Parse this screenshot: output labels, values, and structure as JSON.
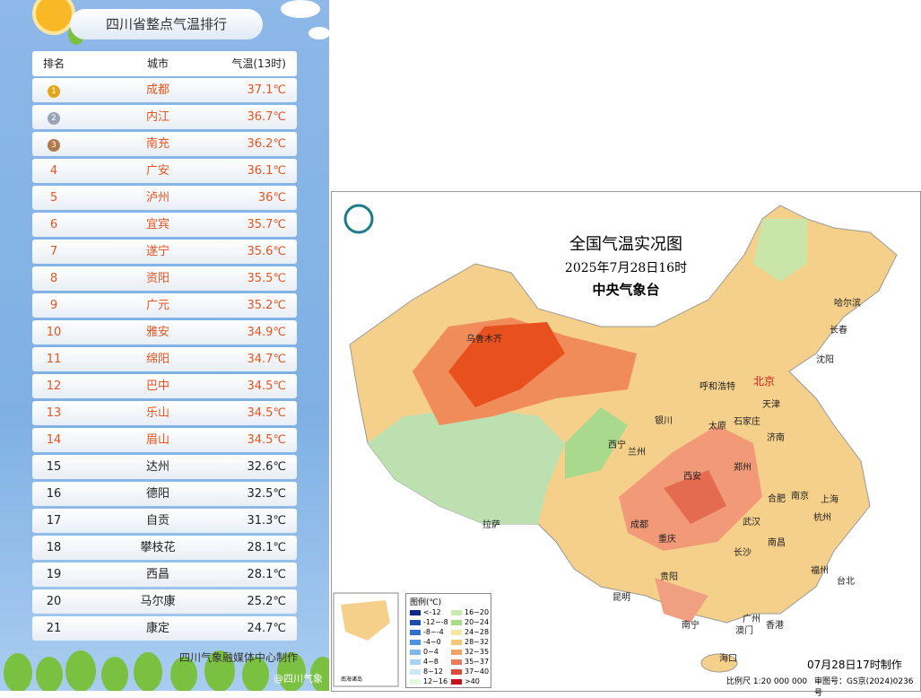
{
  "ranking": {
    "title": "四川省整点气温排行",
    "headers": [
      "排名",
      "城市",
      "气温(13时)"
    ],
    "rows": [
      [
        "1",
        "成都",
        "37.1℃"
      ],
      [
        "2",
        "内江",
        "36.7℃"
      ],
      [
        "3",
        "南充",
        "36.2℃"
      ],
      [
        "4",
        "广安",
        "36.1℃"
      ],
      [
        "5",
        "泸州",
        "36℃"
      ],
      [
        "6",
        "宜宾",
        "35.7℃"
      ],
      [
        "7",
        "遂宁",
        "35.6℃"
      ],
      [
        "8",
        "资阳",
        "35.5℃"
      ],
      [
        "9",
        "广元",
        "35.2℃"
      ],
      [
        "10",
        "雅安",
        "34.9℃"
      ],
      [
        "11",
        "绵阳",
        "34.7℃"
      ],
      [
        "12",
        "巴中",
        "34.5℃"
      ],
      [
        "13",
        "乐山",
        "34.5℃"
      ],
      [
        "14",
        "眉山",
        "34.5℃"
      ],
      [
        "15",
        "达州",
        "32.6℃"
      ],
      [
        "16",
        "德阳",
        "32.5℃"
      ],
      [
        "17",
        "自贡",
        "31.3℃"
      ],
      [
        "18",
        "攀枝花",
        "28.1℃"
      ],
      [
        "19",
        "西昌",
        "28.1℃"
      ],
      [
        "20",
        "马尔康",
        "25.2℃"
      ],
      [
        "21",
        "康定",
        "24.7℃"
      ]
    ],
    "footer": "四川气象融媒体中心制作",
    "watermark": "@四川气象"
  },
  "map": {
    "title": "全国气温实况图",
    "date": "2025年7月28日16时",
    "agency": "中央气象台",
    "cities": [
      "乌鲁木齐",
      "哈尔滨",
      "长春",
      "沈阳",
      "北京",
      "天津",
      "呼和浩特",
      "石家庄",
      "太原",
      "济南",
      "银川",
      "西宁",
      "兰州",
      "郑州",
      "西安",
      "合肥",
      "南京",
      "上海",
      "杭州",
      "成都",
      "重庆",
      "武汉",
      "拉萨",
      "长沙",
      "南昌",
      "贵阳",
      "福州",
      "台北",
      "昆明",
      "广州",
      "南宁",
      "澳门",
      "香港",
      "海口"
    ],
    "legend_title": "图例(℃)",
    "legend": [
      "<-12",
      "-12~-8",
      "-8~-4",
      "-4~0",
      "0~4",
      "4~8",
      "8~12",
      "12~16",
      "16~20",
      "20~24",
      "24~28",
      "28~32",
      "32~35",
      "35~37",
      "37~40",
      ">40"
    ],
    "made": "07月28日17时制作",
    "scale": "比例尺 1:20 000 000",
    "approval": "审图号：GS京(2024)0236号",
    "inset": "南海诸岛"
  }
}
